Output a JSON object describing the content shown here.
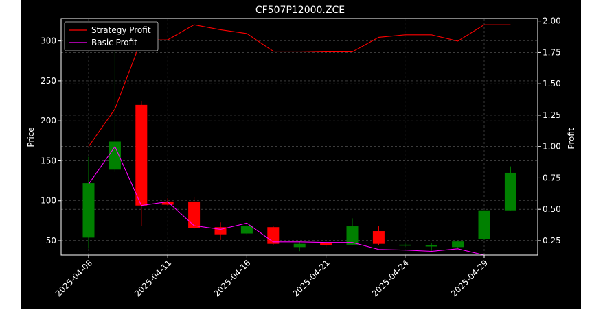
{
  "chart_data": {
    "type": "candlestick",
    "title": "CF507P12000.ZCE",
    "ylabel": "Price",
    "y2label": "Profit",
    "ylim": [
      32,
      328
    ],
    "y2lim": [
      0.135,
      2.02
    ],
    "yticks": [
      50,
      100,
      150,
      200,
      250,
      300
    ],
    "y2ticks": [
      "0.25",
      "0.50",
      "0.75",
      "1.00",
      "1.25",
      "1.50",
      "1.75",
      "2.00"
    ],
    "grid": true,
    "legend_position": "upper-left",
    "up_color": "#008000",
    "down_color": "#ff0000",
    "x_tick_labels": [
      {
        "index": 0,
        "label": "2025-04-08"
      },
      {
        "index": 3,
        "label": "2025-04-11"
      },
      {
        "index": 6,
        "label": "2025-04-16"
      },
      {
        "index": 9,
        "label": "2025-04-21"
      },
      {
        "index": 12,
        "label": "2025-04-24"
      },
      {
        "index": 15,
        "label": "2025-04-29"
      }
    ],
    "candles": [
      {
        "open": 54,
        "close": 122,
        "high": 155,
        "low": 40
      },
      {
        "open": 139,
        "close": 174,
        "high": 300,
        "low": 136
      },
      {
        "open": 220,
        "close": 94,
        "high": 225,
        "low": 68
      },
      {
        "open": 99,
        "close": 95,
        "high": 103,
        "low": 94
      },
      {
        "open": 99,
        "close": 66,
        "high": 105,
        "low": 65
      },
      {
        "open": 67,
        "close": 58,
        "high": 73,
        "low": 51
      },
      {
        "open": 59,
        "close": 68,
        "high": 70,
        "low": 57
      },
      {
        "open": 67,
        "close": 46,
        "high": 68,
        "low": 44
      },
      {
        "open": 42,
        "close": 46,
        "high": 50,
        "low": 37
      },
      {
        "open": 47,
        "close": 44,
        "high": 49,
        "low": 42
      },
      {
        "open": 45,
        "close": 68,
        "high": 78,
        "low": 44
      },
      {
        "open": 62,
        "close": 46,
        "high": 68,
        "low": 44
      },
      {
        "open": 45,
        "close": 45,
        "high": 47,
        "low": 42
      },
      {
        "open": 43,
        "close": 44,
        "high": 47,
        "low": 36
      },
      {
        "open": 42,
        "close": 49,
        "high": 50,
        "low": 41
      },
      {
        "open": 52,
        "close": 88,
        "high": 88,
        "low": 51
      },
      {
        "open": 88,
        "close": 135,
        "high": 143,
        "low": 88
      }
    ],
    "series": [
      {
        "name": "Strategy Profit",
        "color": "#ff0000",
        "axis": "right",
        "values": [
          1.0,
          1.3,
          1.85,
          1.85,
          1.97,
          1.93,
          1.9,
          1.76,
          1.76,
          1.755,
          1.755,
          1.87,
          1.89,
          1.89,
          1.84,
          1.97,
          1.97
        ]
      },
      {
        "name": "Basic Profit",
        "color": "#ff00ff",
        "axis": "right",
        "values": [
          0.7,
          1.0,
          0.53,
          0.56,
          0.37,
          0.34,
          0.39,
          0.24,
          0.24,
          0.235,
          0.235,
          0.18,
          0.175,
          0.165,
          0.185,
          0.135,
          0.135
        ]
      }
    ]
  }
}
